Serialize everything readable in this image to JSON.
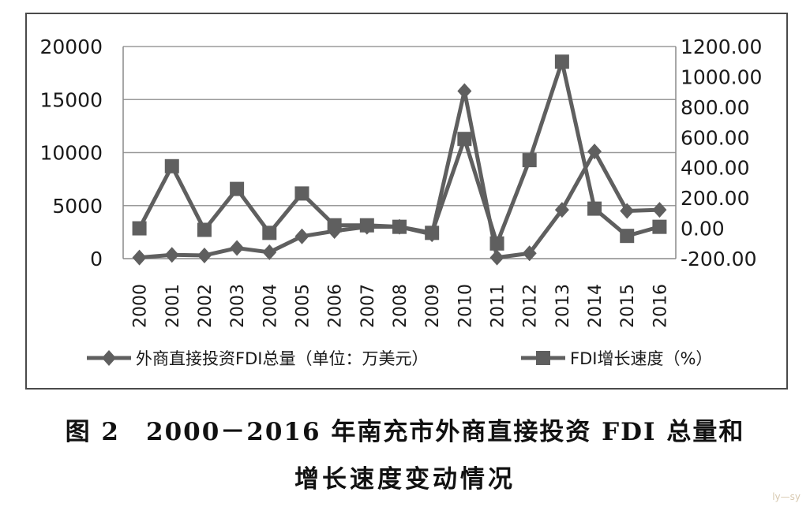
{
  "chart_data": {
    "type": "line",
    "categories": [
      "2000",
      "2001",
      "2002",
      "2003",
      "2004",
      "2005",
      "2006",
      "2007",
      "2008",
      "2009",
      "2010",
      "2011",
      "2012",
      "2013",
      "2014",
      "2015",
      "2016"
    ],
    "series": [
      {
        "name": "外商直接投资FDI总量（单位：万美元）",
        "axis": "left",
        "marker": "diamond",
        "values": [
          100,
          350,
          300,
          1000,
          600,
          2100,
          2600,
          3000,
          3000,
          2300,
          15800,
          100,
          500,
          4600,
          10100,
          4500,
          4600
        ]
      },
      {
        "name": "FDI增长速度（%）",
        "axis": "right",
        "marker": "square",
        "values": [
          0,
          410,
          -10,
          260,
          -30,
          230,
          20,
          20,
          10,
          -30,
          590,
          -100,
          450,
          1100,
          130,
          -50,
          10
        ]
      }
    ],
    "y_left": {
      "ticks": [
        "0",
        "5000",
        "10000",
        "15000",
        "20000"
      ],
      "range": [
        0,
        20000
      ]
    },
    "y_right": {
      "ticks": [
        "-200.00",
        "0.00",
        "200.00",
        "400.00",
        "600.00",
        "800.00",
        "1000.00",
        "1200.00"
      ],
      "range": [
        -200,
        1200
      ]
    },
    "grid": "horizontal",
    "legend": "bottom",
    "line_color": "#5f5f5f"
  },
  "caption": {
    "line1": "图 2　2000－2016 年南充市外商直接投资 FDI 总量和",
    "line2": "增长速度变动情况"
  },
  "watermark": "ly—sy"
}
